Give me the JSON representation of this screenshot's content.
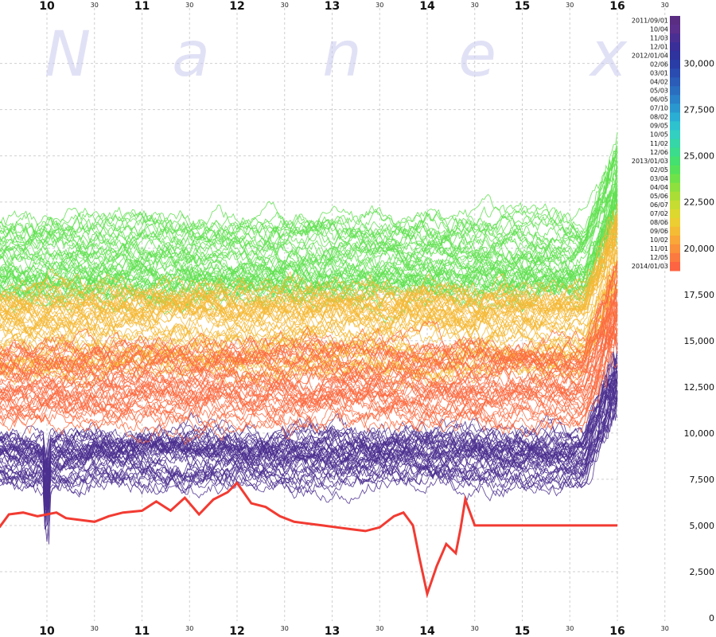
{
  "watermark": {
    "letters": [
      "N",
      "a",
      "n",
      "e",
      "x"
    ]
  },
  "chart_data": {
    "type": "line",
    "title": "",
    "xlabel": "",
    "ylabel": "",
    "x_ticks": [
      {
        "t": 10.0,
        "label": "10"
      },
      {
        "t": 10.5,
        "label": "30"
      },
      {
        "t": 11.0,
        "label": "11"
      },
      {
        "t": 11.5,
        "label": "30"
      },
      {
        "t": 12.0,
        "label": "12"
      },
      {
        "t": 12.5,
        "label": "30"
      },
      {
        "t": 13.0,
        "label": "13"
      },
      {
        "t": 13.5,
        "label": "30"
      },
      {
        "t": 14.0,
        "label": "14"
      },
      {
        "t": 14.5,
        "label": "30"
      },
      {
        "t": 15.0,
        "label": "15"
      },
      {
        "t": 15.5,
        "label": "30"
      },
      {
        "t": 16.0,
        "label": "16"
      },
      {
        "t": 16.5,
        "label": "30"
      }
    ],
    "xlim": [
      9.5,
      16.5
    ],
    "ylim": [
      0,
      33000
    ],
    "y_ticks": [
      {
        "v": 0,
        "label": "0"
      },
      {
        "v": 2500,
        "label": "2,500"
      },
      {
        "v": 5000,
        "label": "5,000"
      },
      {
        "v": 7500,
        "label": "7,500"
      },
      {
        "v": 10000,
        "label": "10,000"
      },
      {
        "v": 12500,
        "label": "12,500"
      },
      {
        "v": 15000,
        "label": "15,000"
      },
      {
        "v": 17500,
        "label": "17,500"
      },
      {
        "v": 20000,
        "label": "20,000"
      },
      {
        "v": 22500,
        "label": "22,500"
      },
      {
        "v": 25000,
        "label": "25,000"
      },
      {
        "v": 27500,
        "label": "27,500"
      },
      {
        "v": 30000,
        "label": "30,000"
      }
    ],
    "grid": true,
    "legend_position": "right",
    "legend": [
      {
        "label": "2011/09/01",
        "color": "#5a2d82"
      },
      {
        "label": "10/04",
        "color": "#5b2f8c"
      },
      {
        "label": "11/03",
        "color": "#4a2f92"
      },
      {
        "label": "12/01",
        "color": "#3a2e98"
      },
      {
        "label": "2012/01/04",
        "color": "#2e339e"
      },
      {
        "label": "02/06",
        "color": "#2a3da6"
      },
      {
        "label": "03/01",
        "color": "#2a4cb0"
      },
      {
        "label": "04/02",
        "color": "#2a5cb8"
      },
      {
        "label": "05/03",
        "color": "#2a6ec0"
      },
      {
        "label": "06/05",
        "color": "#2a82c8"
      },
      {
        "label": "07/10",
        "color": "#2a98cf"
      },
      {
        "label": "08/02",
        "color": "#2aaed3"
      },
      {
        "label": "09/05",
        "color": "#2ec2cf"
      },
      {
        "label": "10/05",
        "color": "#33cfc0"
      },
      {
        "label": "11/02",
        "color": "#36d6a8"
      },
      {
        "label": "12/06",
        "color": "#3bdc8c"
      },
      {
        "label": "2013/01/03",
        "color": "#44e070"
      },
      {
        "label": "02/05",
        "color": "#55e25a"
      },
      {
        "label": "03/04",
        "color": "#6fe24a"
      },
      {
        "label": "04/04",
        "color": "#8ee03e"
      },
      {
        "label": "05/06",
        "color": "#aade36"
      },
      {
        "label": "06/07",
        "color": "#c6dc32"
      },
      {
        "label": "07/02",
        "color": "#dcd830"
      },
      {
        "label": "08/06",
        "color": "#ecce33"
      },
      {
        "label": "09/06",
        "color": "#f4bc35"
      },
      {
        "label": "10/02",
        "color": "#f8a738"
      },
      {
        "label": "11/01",
        "color": "#fa913b"
      },
      {
        "label": "12/05",
        "color": "#fb7a3f"
      },
      {
        "label": "2014/01/03",
        "color": "#fc6442"
      }
    ],
    "legend_range": [
      18700,
      32000
    ],
    "highlight_series": {
      "color": "#f23b32",
      "x": [
        9.5,
        9.6,
        9.75,
        9.9,
        10.0,
        10.1,
        10.2,
        10.35,
        10.5,
        10.65,
        10.8,
        11.0,
        11.15,
        11.3,
        11.45,
        11.6,
        11.75,
        11.9,
        12.0,
        12.15,
        12.3,
        12.45,
        12.6,
        12.75,
        12.9,
        13.05,
        13.2,
        13.35,
        13.5,
        13.65,
        13.75,
        13.85,
        13.92,
        14.0,
        14.1,
        14.2,
        14.3,
        14.35,
        14.4,
        14.5,
        15.0,
        15.5,
        16.0
      ],
      "y": [
        4900,
        5600,
        5700,
        5500,
        5600,
        5700,
        5400,
        5300,
        5200,
        5500,
        5700,
        5800,
        6300,
        5800,
        6500,
        5600,
        6400,
        6800,
        7300,
        6200,
        6000,
        5500,
        5200,
        5100,
        5000,
        4900,
        4800,
        4700,
        4900,
        5500,
        5700,
        5000,
        3200,
        1300,
        2800,
        4000,
        3500,
        4800,
        6400,
        5000,
        5000,
        5000,
        5000
      ]
    },
    "bands": [
      {
        "name": "2011/09/01 - 2012/12/06",
        "color": "#4b2f8f",
        "center": 8600,
        "spread": 1200,
        "count": 40
      },
      {
        "name": "2013/01/03 - 2013/06/07",
        "color": "#5fe04f",
        "center": 19500,
        "spread": 2000,
        "count": 45
      },
      {
        "name": "2013/07/02 - 2013/12/05",
        "color": "#f4b835",
        "center": 15500,
        "spread": 2200,
        "count": 45
      },
      {
        "name": "2014/01/03",
        "color": "#fb6a40",
        "center": 12500,
        "spread": 2000,
        "count": 40
      }
    ]
  }
}
